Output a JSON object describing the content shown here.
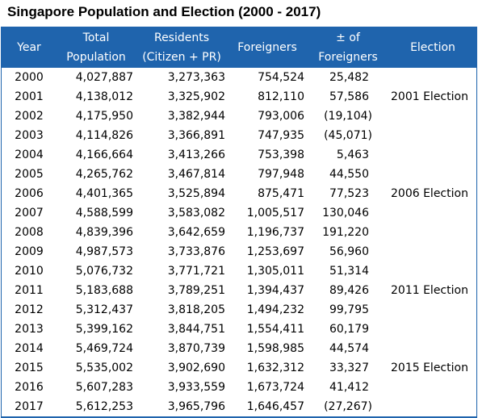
{
  "title": "Singapore Population and Election (2000 - 2017)",
  "header": {
    "year": "Year",
    "total_line1": "Total",
    "total_line2": "Population",
    "residents_line1": "Residents",
    "residents_line2": "(Citizen + PR)",
    "foreigners": "Foreigners",
    "diff_line1": "± of",
    "diff_line2": "Foreigners",
    "election": "Election"
  },
  "header_color": "#1f64ad",
  "rows": [
    {
      "year": "2000",
      "total": "4,027,887",
      "residents": "3,273,363",
      "foreigners": "754,524",
      "diff": "25,482",
      "election": ""
    },
    {
      "year": "2001",
      "total": "4,138,012",
      "residents": "3,325,902",
      "foreigners": "812,110",
      "diff": "57,586",
      "election": "2001 Election"
    },
    {
      "year": "2002",
      "total": "4,175,950",
      "residents": "3,382,944",
      "foreigners": "793,006",
      "diff": "(19,104)",
      "election": ""
    },
    {
      "year": "2003",
      "total": "4,114,826",
      "residents": "3,366,891",
      "foreigners": "747,935",
      "diff": "(45,071)",
      "election": ""
    },
    {
      "year": "2004",
      "total": "4,166,664",
      "residents": "3,413,266",
      "foreigners": "753,398",
      "diff": "5,463",
      "election": ""
    },
    {
      "year": "2005",
      "total": "4,265,762",
      "residents": "3,467,814",
      "foreigners": "797,948",
      "diff": "44,550",
      "election": ""
    },
    {
      "year": "2006",
      "total": "4,401,365",
      "residents": "3,525,894",
      "foreigners": "875,471",
      "diff": "77,523",
      "election": "2006 Election"
    },
    {
      "year": "2007",
      "total": "4,588,599",
      "residents": "3,583,082",
      "foreigners": "1,005,517",
      "diff": "130,046",
      "election": ""
    },
    {
      "year": "2008",
      "total": "4,839,396",
      "residents": "3,642,659",
      "foreigners": "1,196,737",
      "diff": "191,220",
      "election": ""
    },
    {
      "year": "2009",
      "total": "4,987,573",
      "residents": "3,733,876",
      "foreigners": "1,253,697",
      "diff": "56,960",
      "election": ""
    },
    {
      "year": "2010",
      "total": "5,076,732",
      "residents": "3,771,721",
      "foreigners": "1,305,011",
      "diff": "51,314",
      "election": ""
    },
    {
      "year": "2011",
      "total": "5,183,688",
      "residents": "3,789,251",
      "foreigners": "1,394,437",
      "diff": "89,426",
      "election": "2011 Election"
    },
    {
      "year": "2012",
      "total": "5,312,437",
      "residents": "3,818,205",
      "foreigners": "1,494,232",
      "diff": "99,795",
      "election": ""
    },
    {
      "year": "2013",
      "total": "5,399,162",
      "residents": "3,844,751",
      "foreigners": "1,554,411",
      "diff": "60,179",
      "election": ""
    },
    {
      "year": "2014",
      "total": "5,469,724",
      "residents": "3,870,739",
      "foreigners": "1,598,985",
      "diff": "44,574",
      "election": ""
    },
    {
      "year": "2015",
      "total": "5,535,002",
      "residents": "3,902,690",
      "foreigners": "1,632,312",
      "diff": "33,327",
      "election": "2015 Election"
    },
    {
      "year": "2016",
      "total": "5,607,283",
      "residents": "3,933,559",
      "foreigners": "1,673,724",
      "diff": "41,412",
      "election": ""
    },
    {
      "year": "2017",
      "total": "5,612,253",
      "residents": "3,965,796",
      "foreigners": "1,646,457",
      "diff": "(27,267)",
      "election": ""
    }
  ]
}
